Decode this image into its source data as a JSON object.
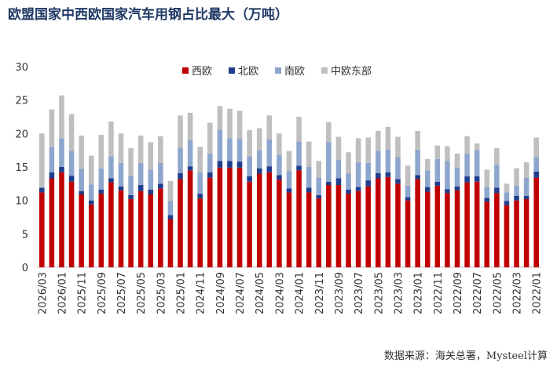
{
  "chart_data": {
    "type": "bar",
    "stacked": true,
    "title": "欧盟国家中西欧国家汽车用钢占比最大（万吨）",
    "source": "数据来源：海关总署，Mysteel计算",
    "ylim": [
      0,
      30
    ],
    "yticks": [
      0,
      5,
      10,
      15,
      20,
      25,
      30
    ],
    "legend_position": "top",
    "categories": [
      "2026/03",
      "2026/02",
      "2026/01",
      "2025/12",
      "2025/11",
      "2025/10",
      "2025/09",
      "2025/08",
      "2025/07",
      "2025/06",
      "2025/05",
      "2025/04",
      "2025/03",
      "2025/02",
      "2025/01",
      "2024/12",
      "2024/11",
      "2024/10",
      "2024/09",
      "2024/08",
      "2024/07",
      "2024/06",
      "2024/05",
      "2024/04",
      "2024/03",
      "2024/02",
      "2024/01",
      "2023/12",
      "2023/11",
      "2023/10",
      "2023/09",
      "2023/08",
      "2023/07",
      "2023/06",
      "2023/05",
      "2023/04",
      "2023/03",
      "2023/02",
      "2023/01",
      "2022/12",
      "2022/11",
      "2022/10",
      "2022/09",
      "2022/08",
      "2022/07",
      "2022/06",
      "2022/05",
      "2022/04",
      "2022/03",
      "2022/02",
      "2022/01"
    ],
    "tick_labels": [
      "2026/03",
      "2026/01",
      "2025/11",
      "2025/09",
      "2025/07",
      "2025/05",
      "2025/03",
      "2025/01",
      "2024/11",
      "2024/09",
      "2024/07",
      "2024/05",
      "2024/03",
      "2024/01",
      "2023/11",
      "2023/09",
      "2023/07",
      "2023/05",
      "2023/03",
      "2023/01",
      "2022/11",
      "2022/09",
      "2022/07",
      "2022/05",
      "2022/03",
      "2022/01"
    ],
    "series": [
      {
        "name": "西欧",
        "color": "#c00000",
        "values": [
          11.2,
          13.3,
          14.2,
          12.8,
          10.9,
          9.4,
          11.0,
          12.7,
          11.5,
          10.2,
          11.4,
          10.9,
          11.8,
          7.2,
          13.2,
          14.5,
          10.3,
          13.4,
          14.9,
          14.9,
          14.9,
          12.8,
          14.0,
          14.2,
          13.1,
          11.2,
          14.5,
          11.2,
          10.3,
          12.3,
          12.3,
          11.0,
          11.4,
          12.1,
          13.3,
          13.5,
          12.5,
          10.0,
          13.2,
          11.3,
          12.2,
          11.1,
          11.5,
          12.7,
          12.8,
          9.8,
          11.1,
          9.3,
          10.0,
          10.2,
          13.4
        ]
      },
      {
        "name": "北欧",
        "color": "#1f3d8c",
        "values": [
          0.7,
          0.9,
          0.8,
          0.9,
          0.5,
          0.6,
          0.6,
          0.6,
          0.6,
          0.6,
          0.9,
          0.7,
          0.7,
          0.6,
          0.9,
          0.6,
          0.7,
          0.8,
          1.0,
          1.0,
          0.9,
          0.8,
          0.8,
          0.9,
          0.7,
          0.6,
          0.7,
          0.7,
          0.5,
          0.5,
          1.0,
          0.6,
          0.6,
          0.9,
          0.8,
          0.7,
          0.7,
          0.5,
          0.6,
          0.7,
          0.6,
          0.6,
          0.6,
          0.9,
          0.8,
          0.6,
          0.8,
          0.6,
          0.7,
          0.5,
          0.9
        ]
      },
      {
        "name": "南欧",
        "color": "#8ea6ce",
        "values": [
          0.0,
          3.8,
          4.3,
          3.7,
          3.3,
          2.4,
          3.2,
          3.3,
          3.5,
          2.9,
          3.3,
          3.0,
          3.1,
          2.1,
          3.8,
          3.9,
          3.2,
          2.8,
          4.7,
          3.4,
          3.4,
          3.0,
          2.7,
          4.0,
          3.0,
          2.6,
          3.6,
          3.1,
          2.6,
          5.9,
          2.8,
          2.4,
          3.7,
          2.6,
          3.3,
          3.4,
          3.3,
          1.7,
          3.8,
          2.5,
          3.4,
          4.2,
          2.8,
          3.4,
          3.9,
          1.6,
          3.4,
          1.3,
          1.5,
          2.7,
          2.2
        ]
      },
      {
        "name": "中欧东部",
        "color": "#bfbfbf",
        "values": [
          8.1,
          5.6,
          6.4,
          5.5,
          5.0,
          4.3,
          5.0,
          5.2,
          4.4,
          4.1,
          4.1,
          4.1,
          4.0,
          3.0,
          4.8,
          4.1,
          3.8,
          4.6,
          3.5,
          4.4,
          4.2,
          3.9,
          3.3,
          3.6,
          3.2,
          3.0,
          3.7,
          3.8,
          2.5,
          3.0,
          3.4,
          3.2,
          3.6,
          3.8,
          3.0,
          3.4,
          3.0,
          3.0,
          2.8,
          1.7,
          2.0,
          2.2,
          2.1,
          2.6,
          1.0,
          2.6,
          2.5,
          1.3,
          2.6,
          2.3,
          2.9
        ]
      }
    ]
  }
}
